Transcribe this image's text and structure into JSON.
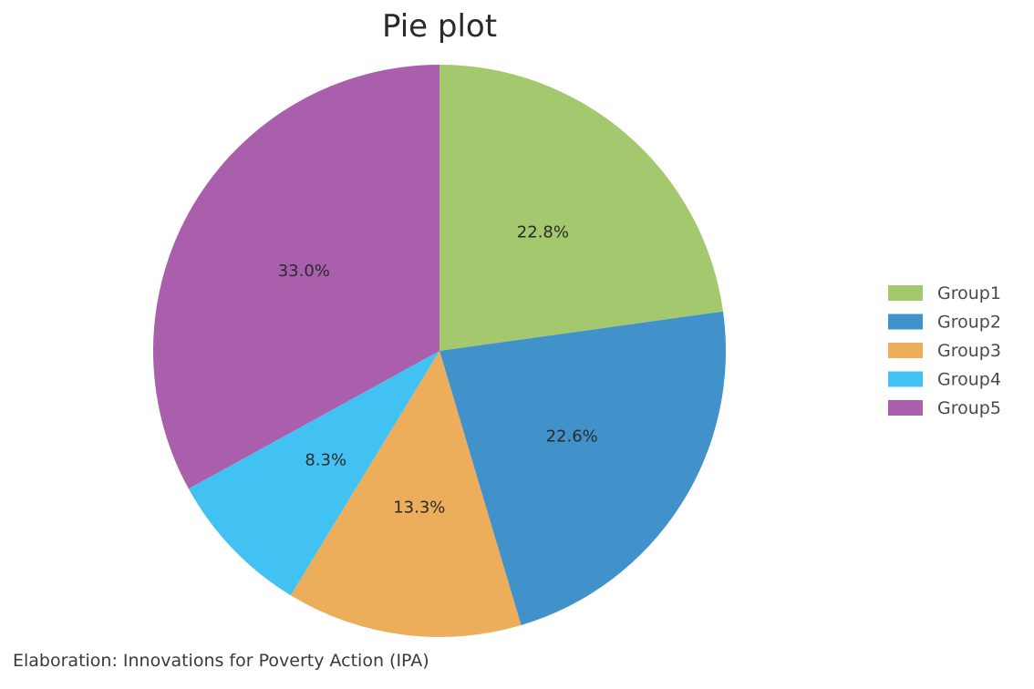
{
  "chart_data": {
    "type": "pie",
    "title": "Pie plot",
    "slices": [
      {
        "name": "Group1",
        "value": 22.8,
        "label": "22.8%",
        "color": "#a3c86d"
      },
      {
        "name": "Group2",
        "value": 22.6,
        "label": "22.6%",
        "color": "#4192cb"
      },
      {
        "name": "Group3",
        "value": 13.3,
        "label": "13.3%",
        "color": "#ecae5a"
      },
      {
        "name": "Group4",
        "value": 8.3,
        "label": "8.3%",
        "color": "#42c2f2"
      },
      {
        "name": "Group5",
        "value": 33.0,
        "label": "33.0%",
        "color": "#a95fab"
      }
    ],
    "legend": {
      "position": "right",
      "entries": [
        "Group1",
        "Group2",
        "Group3",
        "Group4",
        "Group5"
      ]
    }
  },
  "caption": "Elaboration: Innovations for Poverty Action (IPA)"
}
